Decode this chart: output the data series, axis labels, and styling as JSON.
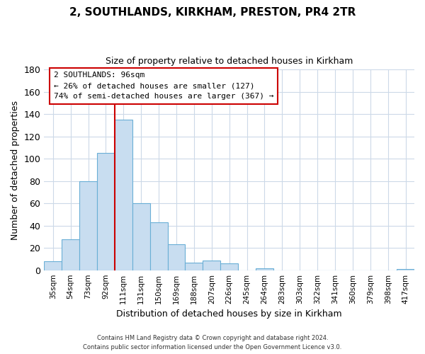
{
  "title": "2, SOUTHLANDS, KIRKHAM, PRESTON, PR4 2TR",
  "subtitle": "Size of property relative to detached houses in Kirkham",
  "xlabel": "Distribution of detached houses by size in Kirkham",
  "ylabel": "Number of detached properties",
  "bar_color": "#c8ddf0",
  "bar_edge_color": "#6aafd6",
  "categories": [
    "35sqm",
    "54sqm",
    "73sqm",
    "92sqm",
    "111sqm",
    "131sqm",
    "150sqm",
    "169sqm",
    "188sqm",
    "207sqm",
    "226sqm",
    "245sqm",
    "264sqm",
    "283sqm",
    "303sqm",
    "322sqm",
    "341sqm",
    "360sqm",
    "379sqm",
    "398sqm",
    "417sqm"
  ],
  "values": [
    8,
    28,
    80,
    105,
    135,
    60,
    43,
    23,
    7,
    9,
    6,
    0,
    2,
    0,
    0,
    0,
    0,
    0,
    0,
    0,
    1
  ],
  "ylim": [
    0,
    180
  ],
  "yticks": [
    0,
    20,
    40,
    60,
    80,
    100,
    120,
    140,
    160,
    180
  ],
  "property_line_color": "#cc0000",
  "annotation_text": "2 SOUTHLANDS: 96sqm\n← 26% of detached houses are smaller (127)\n74% of semi-detached houses are larger (367) →",
  "footer_line1": "Contains HM Land Registry data © Crown copyright and database right 2024.",
  "footer_line2": "Contains public sector information licensed under the Open Government Licence v3.0.",
  "background_color": "#ffffff",
  "grid_color": "#ccd9e8"
}
